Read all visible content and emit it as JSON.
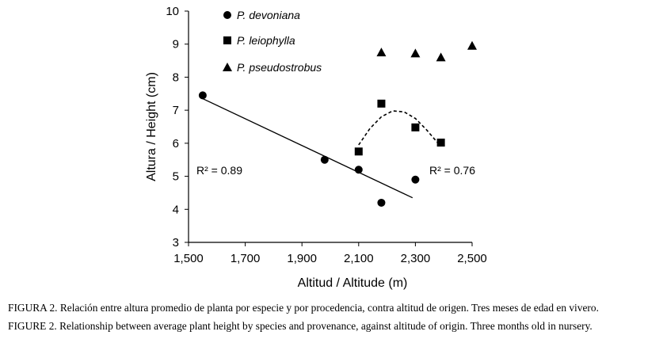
{
  "chart_data": {
    "type": "scatter",
    "xlabel": "Altitud / Altitude (m)",
    "ylabel": "Altura / Height (cm)",
    "xlim": [
      1500,
      2500
    ],
    "ylim": [
      3,
      10
    ],
    "x_ticks": [
      1500,
      1700,
      1900,
      2100,
      2300,
      2500
    ],
    "x_tick_labels": [
      "1,500",
      "1,700",
      "1,900",
      "2,100",
      "2,300",
      "2,500"
    ],
    "y_ticks": [
      3,
      4,
      5,
      6,
      7,
      8,
      9,
      10
    ],
    "y_tick_labels": [
      "3",
      "4",
      "5",
      "6",
      "7",
      "8",
      "9",
      "10"
    ],
    "series": [
      {
        "name": "P. devoniana",
        "marker": "circle",
        "points": [
          [
            1550,
            7.45
          ],
          [
            1980,
            5.5
          ],
          [
            2100,
            5.2
          ],
          [
            2180,
            4.2
          ],
          [
            2300,
            4.9
          ]
        ],
        "trend": {
          "type": "linear",
          "from": [
            1550,
            7.35
          ],
          "to": [
            2290,
            4.35
          ],
          "style": "solid"
        },
        "r2_label": "R² = 0.89"
      },
      {
        "name": "P. leiophylla",
        "marker": "square",
        "points": [
          [
            2100,
            5.75
          ],
          [
            2180,
            7.2
          ],
          [
            2300,
            6.48
          ],
          [
            2390,
            6.02
          ]
        ],
        "trend": {
          "type": "quadratic",
          "style": "dashed",
          "curve": [
            [
              2100,
              5.95
            ],
            [
              2140,
              6.45
            ],
            [
              2180,
              6.8
            ],
            [
              2220,
              6.98
            ],
            [
              2260,
              6.95
            ],
            [
              2300,
              6.75
            ],
            [
              2340,
              6.4
            ],
            [
              2380,
              6.0
            ]
          ]
        },
        "r2_label": "R² = 0.76"
      },
      {
        "name": "P. pseudostrobus",
        "marker": "triangle",
        "points": [
          [
            2180,
            8.75
          ],
          [
            2300,
            8.72
          ],
          [
            2390,
            8.6
          ],
          [
            2500,
            8.95
          ]
        ]
      }
    ]
  },
  "captions": {
    "es": "FIGURA 2. Relación entre altura promedio de planta por especie y por procedencia, contra altitud de origen. Tres meses de edad en vivero.",
    "en": "FIGURE 2. Relationship between average plant height by species and provenance, against altitude of origin. Three months old in nursery."
  }
}
